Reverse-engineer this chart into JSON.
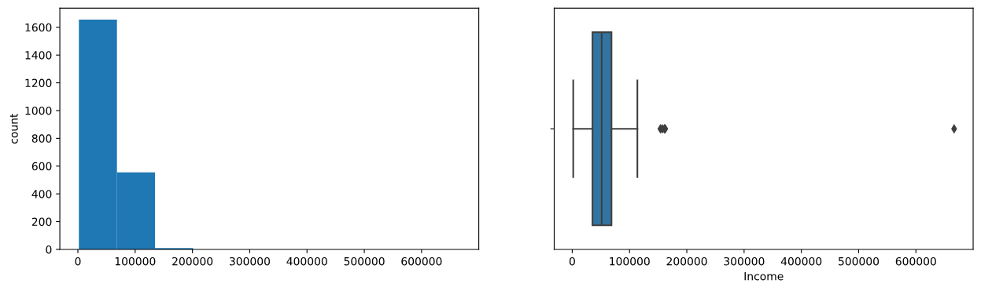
{
  "chart_data": [
    {
      "type": "histogram",
      "ylabel": "count",
      "color": "#1f77b4",
      "bins": [
        1730,
        68224,
        134717,
        201211,
        267704,
        334198,
        400691,
        467185,
        533678,
        600172,
        666666
      ],
      "values": [
        1655,
        555,
        10,
        0,
        0,
        0,
        0,
        0,
        0,
        null
      ],
      "xlim": [
        -31500,
        699900
      ],
      "xticks": [
        0,
        100000,
        200000,
        300000,
        400000,
        500000,
        600000
      ],
      "ylim": [
        0,
        1738
      ],
      "yticks": [
        0,
        200,
        400,
        600,
        800,
        1000,
        1200,
        1400,
        1600
      ]
    },
    {
      "type": "box",
      "orientation": "horizontal",
      "xlabel": "Income",
      "categories": [
        null
      ],
      "series": [
        {
          "color": "#3274a1",
          "boxes": [
            {
              "low": 1730,
              "q1": 35300,
              "median": 51400,
              "q3": 68500,
              "high": 113700,
              "outliers": [
                153900,
                157200,
                160800,
                162400,
                666666
              ]
            }
          ]
        }
      ],
      "xlim": [
        -31500,
        699900
      ],
      "xticks": [
        0,
        100000,
        200000,
        300000,
        400000,
        500000,
        600000
      ]
    }
  ]
}
